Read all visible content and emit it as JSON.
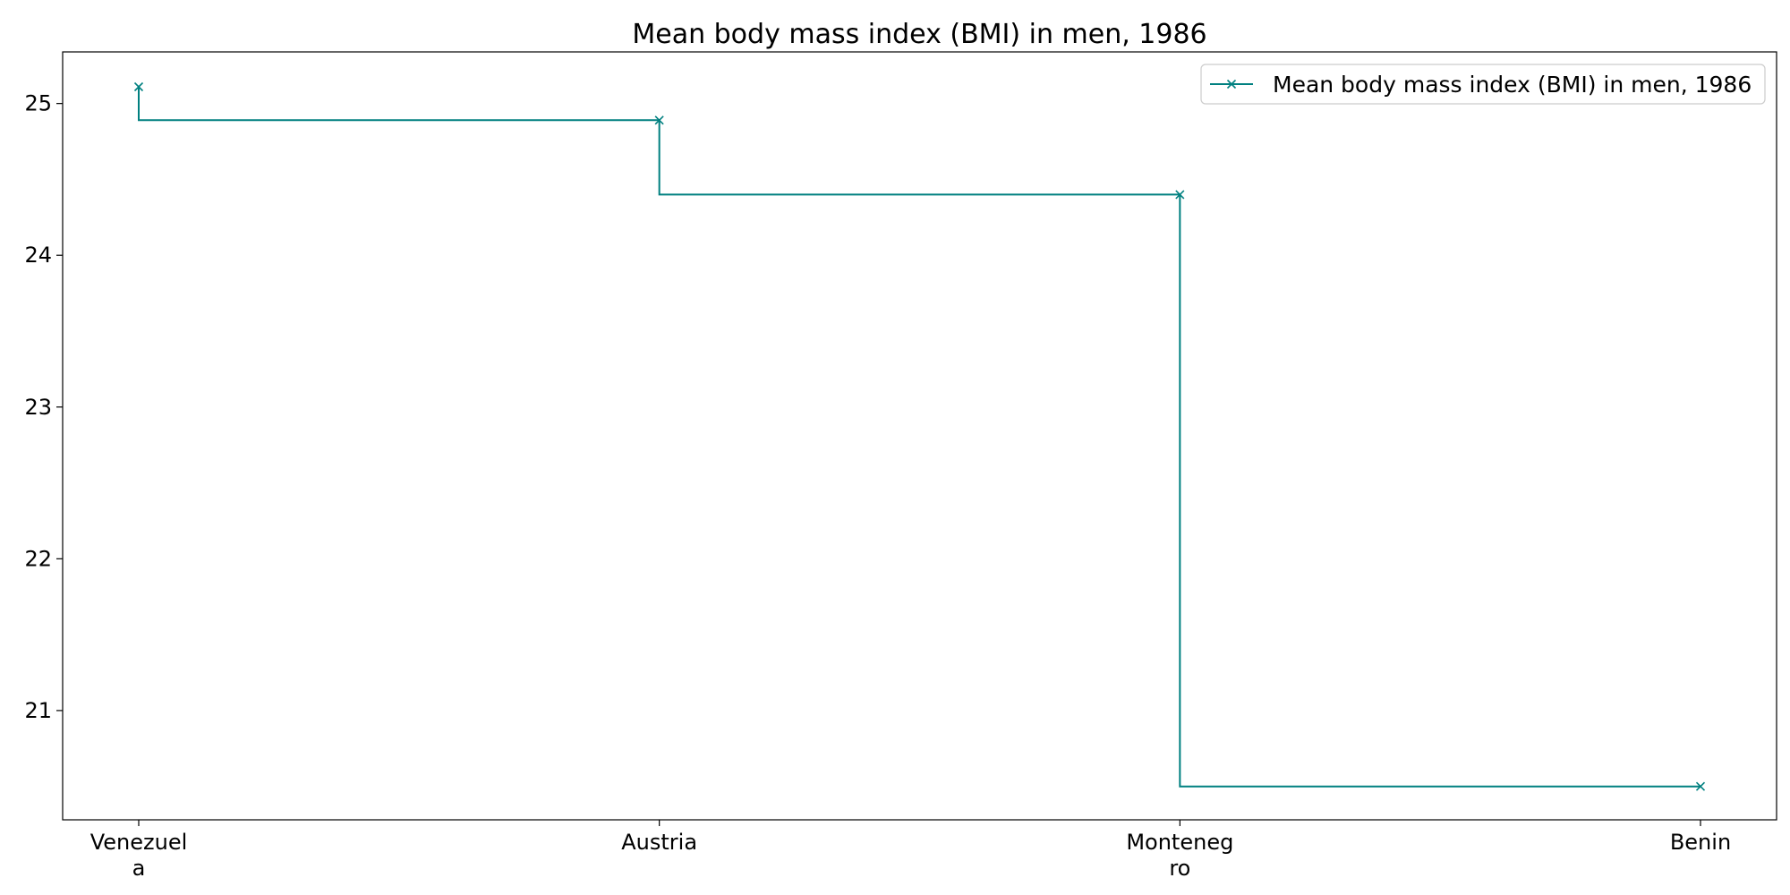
{
  "chart_data": {
    "type": "line",
    "title": "Mean body mass index (BMI) in men, 1986",
    "xlabel": "",
    "ylabel": "",
    "categories": [
      "Venezuela",
      "Austria",
      "Montenegro",
      "Benin"
    ],
    "category_tick_labels": [
      [
        "Venezuel",
        "a"
      ],
      [
        "Austria"
      ],
      [
        "Monteneg",
        "ro"
      ],
      [
        "Benin"
      ]
    ],
    "series": [
      {
        "name": "Mean body mass index (BMI) in men, 1986",
        "values": [
          25.11,
          24.89,
          24.4,
          20.5
        ],
        "color": "#008080",
        "marker": "x",
        "drawstyle": "steps-pre"
      }
    ],
    "yticks": [
      21,
      22,
      23,
      24,
      25
    ],
    "ylim": [
      20.28,
      25.34
    ],
    "grid": false,
    "legend": "top-right"
  }
}
